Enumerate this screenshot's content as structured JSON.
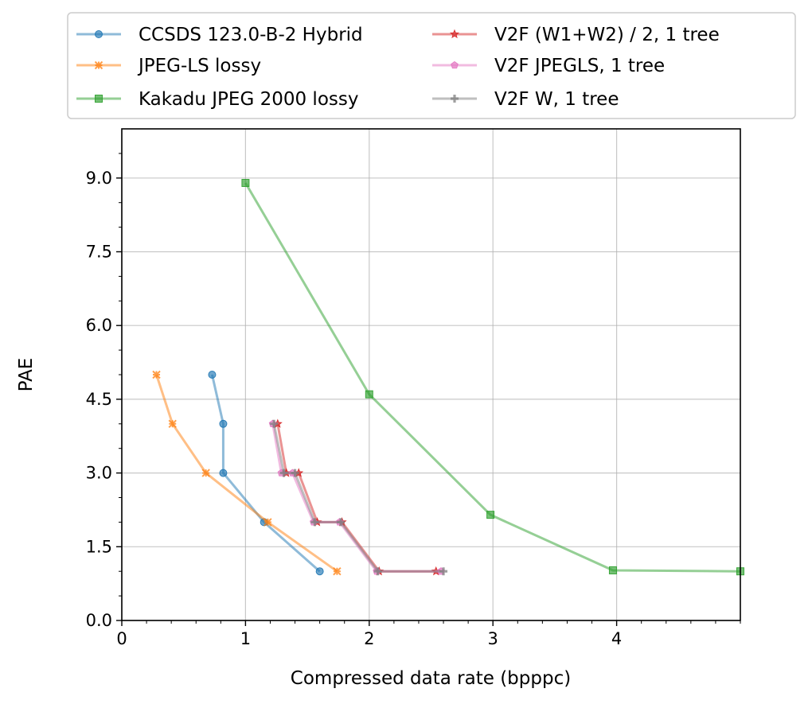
{
  "chart_data": {
    "type": "line",
    "title": "",
    "xlabel": "Compressed data rate (bpppc)",
    "ylabel": "PAE",
    "xlim": [
      0,
      5
    ],
    "ylim": [
      0,
      10
    ],
    "xticks": [
      0,
      1,
      2,
      3,
      4
    ],
    "xtick_labels": [
      "0",
      "1",
      "2",
      "3",
      "4"
    ],
    "yticks": [
      0,
      1.5,
      3,
      4.5,
      6,
      7.5,
      9
    ],
    "ytick_labels": [
      "0.0",
      "1.5",
      "3.0",
      "4.5",
      "6.0",
      "7.5",
      "9.0"
    ],
    "grid": true,
    "legend": {
      "placement": "top",
      "columns": 2
    },
    "series": [
      {
        "name": "CCSDS 123.0-B-2 Hybrid",
        "color": "#1f77b4",
        "marker": "circle",
        "x": [
          0.73,
          0.82,
          0.82,
          1.15,
          1.6
        ],
        "y": [
          5,
          4,
          3,
          2,
          1
        ]
      },
      {
        "name": "JPEG-LS lossy",
        "color": "#ff7f0e",
        "marker": "x",
        "x": [
          0.28,
          0.41,
          0.68,
          1.18,
          1.74
        ],
        "y": [
          5,
          4,
          3,
          2,
          1
        ]
      },
      {
        "name": "Kakadu JPEG 2000 lossy",
        "color": "#2ca02c",
        "marker": "square",
        "x": [
          1.0,
          2.0,
          2.98,
          3.97,
          5.0
        ],
        "y": [
          8.9,
          4.6,
          2.15,
          1.02,
          1.0
        ]
      },
      {
        "name": "V2F (W1+W2) / 2, 1 tree",
        "color": "#d62728",
        "marker": "star",
        "x": [
          1.26,
          1.33,
          1.43,
          1.58,
          1.78,
          2.08,
          2.54
        ],
        "y": [
          4,
          3,
          3,
          2,
          2,
          1,
          1
        ]
      },
      {
        "name": "V2F JPEGLS, 1 tree",
        "color": "#e377c2",
        "marker": "pentagon",
        "x": [
          1.22,
          1.29,
          1.38,
          1.55,
          1.76,
          2.06,
          2.58
        ],
        "y": [
          4,
          3,
          3,
          2,
          2,
          1,
          1
        ]
      },
      {
        "name": "V2F W, 1 tree",
        "color": "#7f7f7f",
        "marker": "plus",
        "x": [
          1.23,
          1.31,
          1.4,
          1.56,
          1.77,
          2.07,
          2.6
        ],
        "y": [
          4,
          3,
          3,
          2,
          2,
          1,
          1
        ]
      }
    ]
  }
}
